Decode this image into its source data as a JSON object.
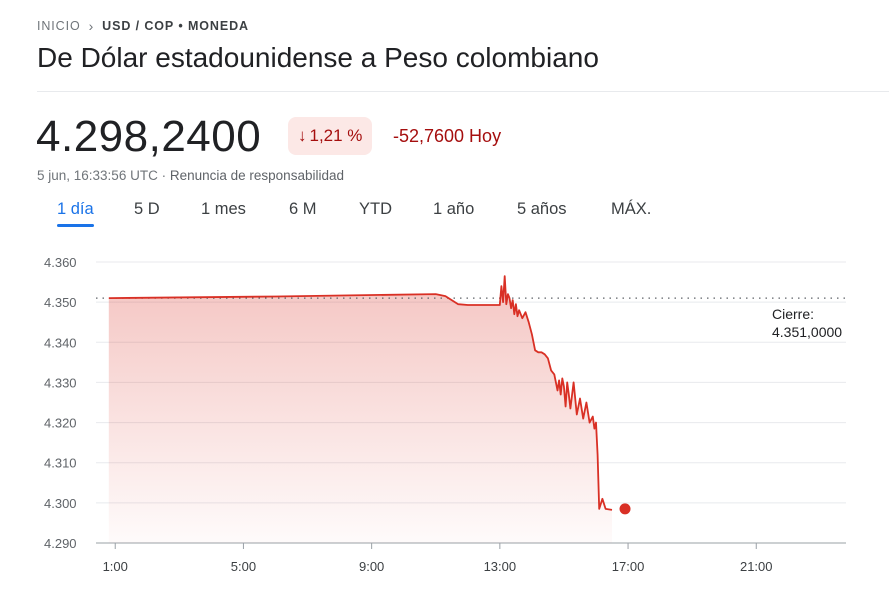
{
  "breadcrumb": {
    "home": "INICIO",
    "current": "USD / COP • MONEDA"
  },
  "title": "De Dólar estadounidense a Peso colombiano",
  "quote": {
    "price": "4.298,2400",
    "pct_change": "1,21 %",
    "abs_change": "-52,7600 Hoy",
    "timestamp": "5 jun, 16:33:56 UTC",
    "separator": "·",
    "disclaimer": "Renuncia de responsabilidad"
  },
  "tabs": [
    {
      "label": "1 día",
      "active": true
    },
    {
      "label": "5 D",
      "active": false
    },
    {
      "label": "1 mes",
      "active": false
    },
    {
      "label": "6 M",
      "active": false
    },
    {
      "label": "YTD",
      "active": false
    },
    {
      "label": "1 año",
      "active": false
    },
    {
      "label": "5 años",
      "active": false
    },
    {
      "label": "MÁX.",
      "active": false
    }
  ],
  "colors": {
    "negative": "#a50e0e",
    "accent": "#1a73e8",
    "line": "#d93025"
  },
  "chart_data": {
    "type": "area",
    "x_ticks": [
      "1:00",
      "5:00",
      "9:00",
      "13:00",
      "17:00",
      "21:00"
    ],
    "x_tick_hours": [
      1,
      5,
      9,
      13,
      17,
      21
    ],
    "xlim_hours": [
      0.4,
      23.8
    ],
    "y_ticks": [
      "4.360",
      "4.350",
      "4.340",
      "4.330",
      "4.320",
      "4.310",
      "4.300",
      "4.290"
    ],
    "y_tick_values": [
      4360,
      4350,
      4340,
      4330,
      4320,
      4310,
      4300,
      4290
    ],
    "ylim": [
      4290,
      4360
    ],
    "previous_close": 4351.0,
    "previous_close_label": "Cierre:",
    "previous_close_value": "4.351,0000",
    "grid": true,
    "series": [
      {
        "x": [
          0.8,
          6.0,
          11.0,
          11.3,
          11.7,
          12.0,
          12.5,
          13.0,
          13.05,
          13.1,
          13.15,
          13.2,
          13.25,
          13.3,
          13.35,
          13.4,
          13.45,
          13.5,
          13.55,
          13.6,
          13.7,
          13.8,
          13.9,
          14.0,
          14.1,
          14.2,
          14.3,
          14.4,
          14.5,
          14.6,
          14.7,
          14.8,
          14.85,
          14.9,
          14.95,
          15.0,
          15.05,
          15.1,
          15.15,
          15.2,
          15.3,
          15.4,
          15.5,
          15.6,
          15.7,
          15.8,
          15.9,
          15.95,
          16.0,
          16.05,
          16.1,
          16.2,
          16.3,
          16.5
        ],
        "y": [
          4351.0,
          4351.4,
          4352.0,
          4351.5,
          4349.5,
          4349.3,
          4349.3,
          4349.3,
          4354.0,
          4350.0,
          4356.5,
          4349.5,
          4352.0,
          4351.0,
          4348.5,
          4350.5,
          4347.0,
          4349.5,
          4346.5,
          4348.0,
          4346.0,
          4347.5,
          4345.0,
          4342.0,
          4338.0,
          4337.5,
          4337.5,
          4337.0,
          4336.0,
          4333.0,
          4332.0,
          4328.0,
          4330.5,
          4327.0,
          4331.0,
          4329.0,
          4324.0,
          4330.0,
          4327.0,
          4323.5,
          4330.0,
          4322.0,
          4326.0,
          4321.0,
          4325.0,
          4320.0,
          4321.5,
          4318.5,
          4320.0,
          4312.0,
          4298.5,
          4301.0,
          4298.5,
          4298.24
        ]
      }
    ]
  }
}
